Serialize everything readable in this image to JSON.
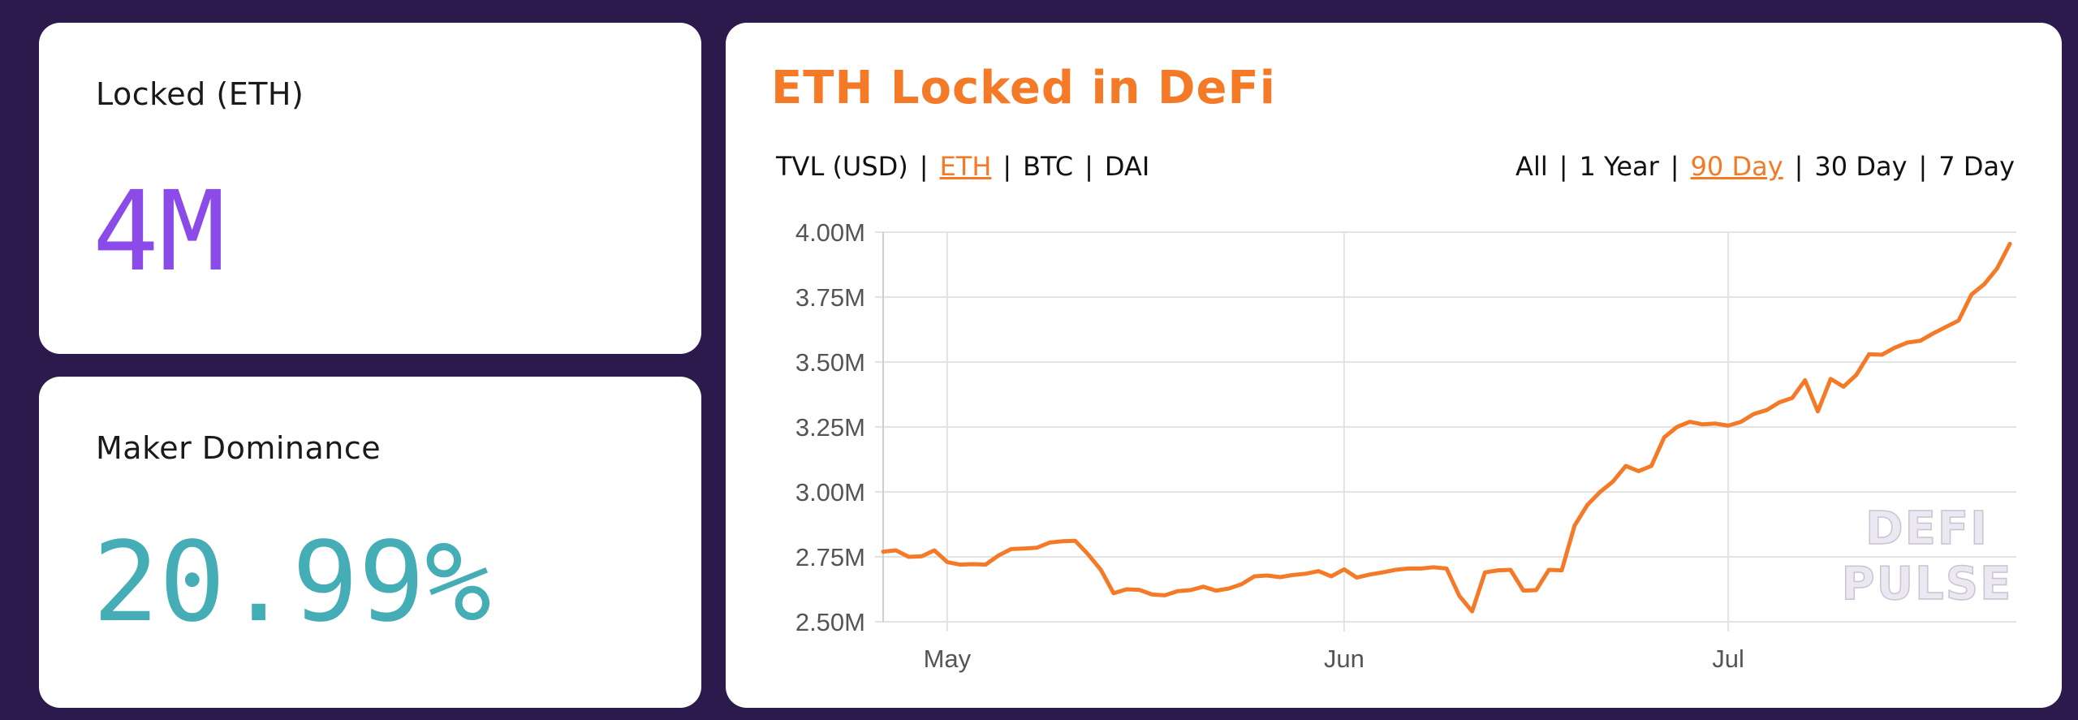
{
  "stats": [
    {
      "label": "Locked (ETH)",
      "value": "4M",
      "color": "#8a4be8"
    },
    {
      "label": "Maker Dominance",
      "value": "20.99%",
      "color": "#45adb5"
    }
  ],
  "chart_panel": {
    "title": "ETH Locked in DeFi",
    "unit_options": [
      {
        "label": "TVL (USD)",
        "active": false
      },
      {
        "label": "ETH",
        "active": true
      },
      {
        "label": "BTC",
        "active": false
      },
      {
        "label": "DAI",
        "active": false
      }
    ],
    "range_options": [
      {
        "label": "All",
        "active": false
      },
      {
        "label": "1 Year",
        "active": false
      },
      {
        "label": "90 Day",
        "active": true
      },
      {
        "label": "30 Day",
        "active": false
      },
      {
        "label": "7 Day",
        "active": false
      }
    ],
    "watermark": [
      "DEFI",
      "PULSE"
    ]
  },
  "colors": {
    "accent": "#f47a27",
    "background": "#2c1a4d"
  },
  "chart_data": {
    "type": "line",
    "title": "ETH Locked in DeFi",
    "xlabel": "",
    "ylabel": "",
    "x_ticks": [
      {
        "label": "May",
        "day": 5
      },
      {
        "label": "Jun",
        "day": 36
      },
      {
        "label": "Jul",
        "day": 66
      }
    ],
    "y_ticks": [
      "4.00M",
      "3.75M",
      "3.50M",
      "3.25M",
      "3.00M",
      "2.75M",
      "2.50M"
    ],
    "ylim": [
      2500000,
      4000000
    ],
    "xlim": [
      0,
      88.5
    ],
    "grid": true,
    "series": [
      {
        "color": "#f47a27",
        "x": [
          0,
          1,
          2,
          3,
          4,
          5,
          6,
          7,
          8,
          9,
          10,
          11,
          12,
          13,
          14,
          15,
          16,
          17,
          18,
          19,
          20,
          21,
          22,
          23,
          24,
          25,
          26,
          27,
          28,
          29,
          30,
          31,
          32,
          33,
          34,
          35,
          36,
          37,
          38,
          39,
          40,
          41,
          42,
          43,
          44,
          45,
          46,
          47,
          48,
          49,
          50,
          51,
          52,
          53,
          54,
          55,
          56,
          57,
          58,
          59,
          60,
          61,
          62,
          63,
          64,
          65,
          66,
          67,
          68,
          69,
          70,
          71,
          72,
          73,
          74,
          75,
          76,
          77,
          78,
          79,
          80,
          81,
          82,
          83,
          84,
          85,
          86,
          87,
          88
        ],
        "values": [
          2770000,
          2775000,
          2750000,
          2752000,
          2775000,
          2730000,
          2720000,
          2722000,
          2720000,
          2755000,
          2780000,
          2782000,
          2785000,
          2805000,
          2810000,
          2812000,
          2760000,
          2700000,
          2610000,
          2625000,
          2623000,
          2605000,
          2602000,
          2618000,
          2622000,
          2635000,
          2620000,
          2628000,
          2645000,
          2675000,
          2678000,
          2672000,
          2680000,
          2685000,
          2695000,
          2675000,
          2702000,
          2670000,
          2682000,
          2690000,
          2700000,
          2705000,
          2705000,
          2710000,
          2705000,
          2600000,
          2540000,
          2690000,
          2698000,
          2700000,
          2620000,
          2622000,
          2700000,
          2698000,
          2870000,
          2950000,
          3000000,
          3040000,
          3100000,
          3080000,
          3100000,
          3210000,
          3250000,
          3270000,
          3260000,
          3263000,
          3255000,
          3270000,
          3300000,
          3315000,
          3345000,
          3362000,
          3430000,
          3310000,
          3435000,
          3405000,
          3450000,
          3530000,
          3528000,
          3555000,
          3575000,
          3582000,
          3610000,
          3635000,
          3660000,
          3760000,
          3800000,
          3860000,
          3955000
        ]
      }
    ]
  }
}
